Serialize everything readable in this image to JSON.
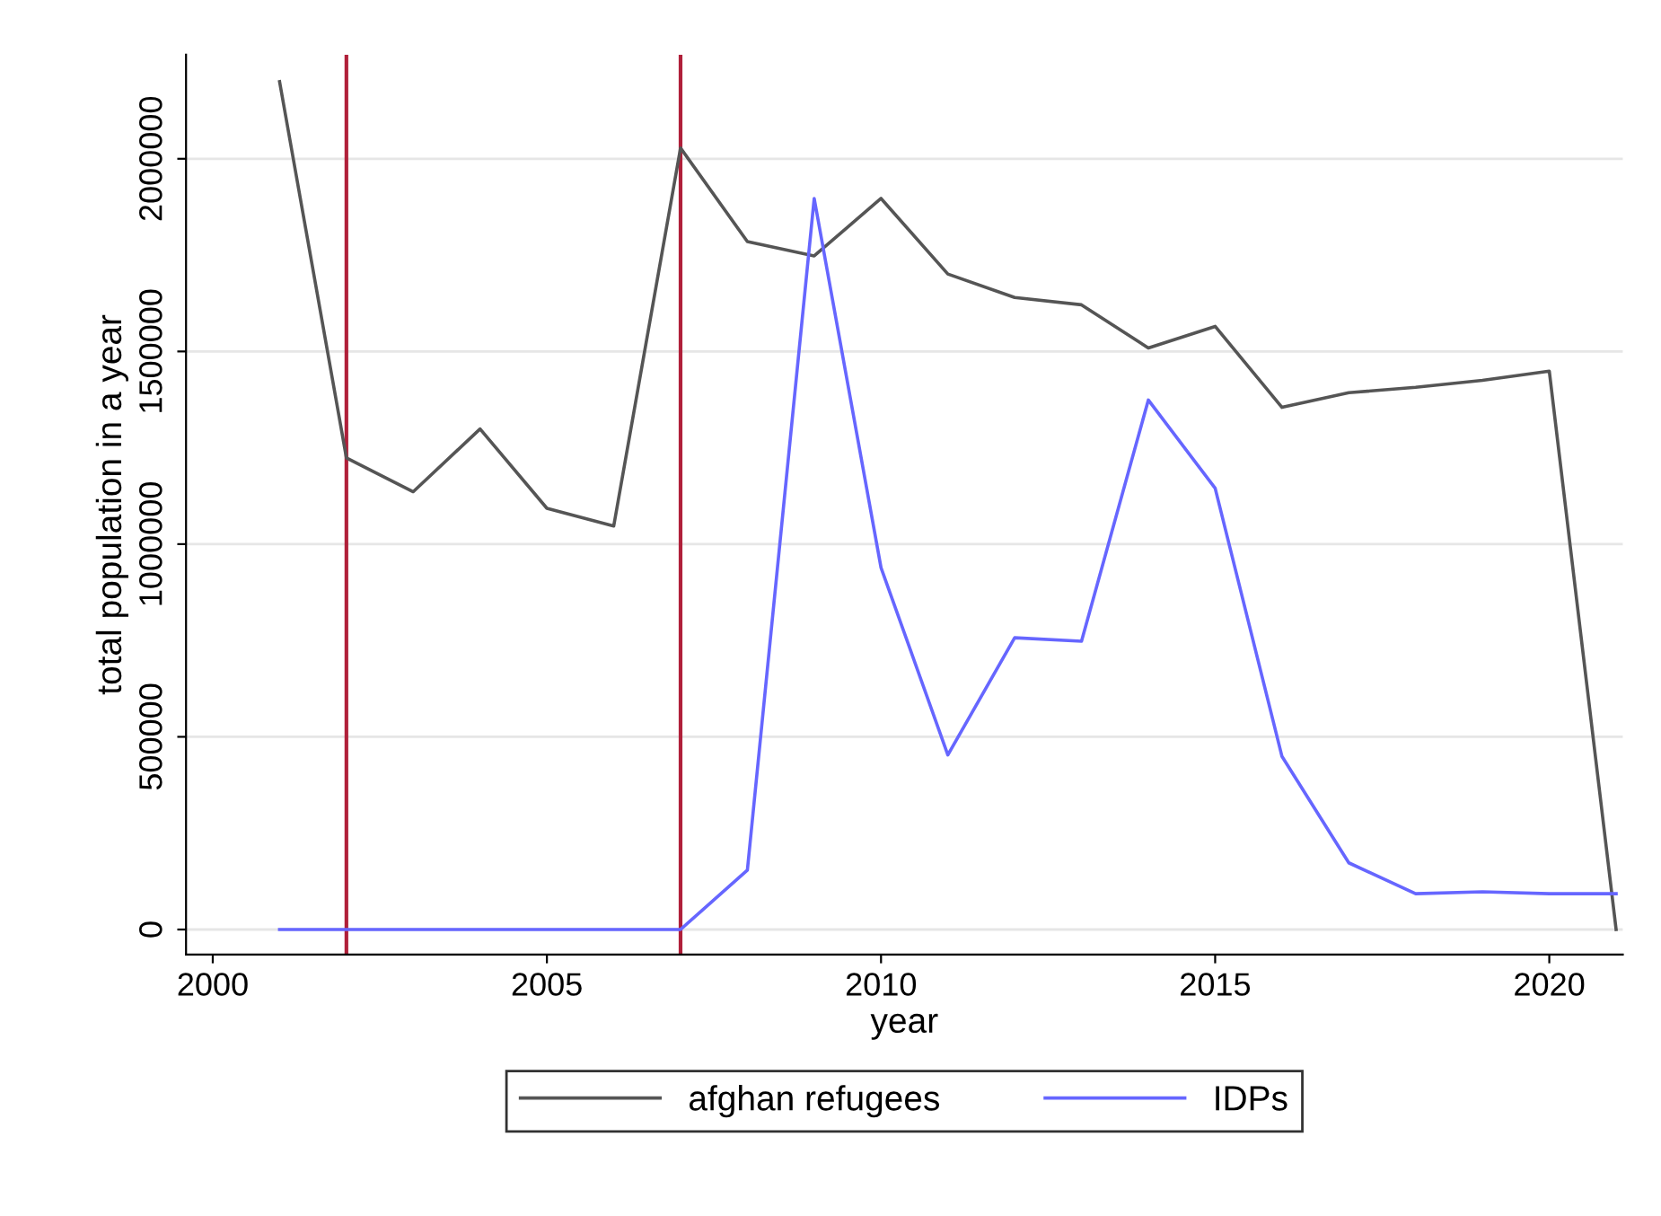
{
  "chart_data": {
    "type": "line",
    "xlabel": "year",
    "ylabel": "total population in a year",
    "x": [
      2001,
      2002,
      2003,
      2004,
      2005,
      2006,
      2007,
      2008,
      2009,
      2010,
      2011,
      2012,
      2013,
      2014,
      2015,
      2016,
      2017,
      2018,
      2019,
      2020,
      2021
    ],
    "series": [
      {
        "name": "afghan refugees",
        "color": "#555555",
        "values": [
          2200000,
          1224000,
          1136000,
          1299000,
          1093000,
          1047000,
          2028000,
          1785000,
          1748000,
          1897000,
          1701000,
          1640000,
          1621000,
          1509000,
          1565000,
          1355000,
          1393000,
          1407000,
          1425000,
          1449000,
          0
        ]
      },
      {
        "name": "IDPs",
        "color": "#6666ff",
        "values": [
          0,
          0,
          0,
          0,
          0,
          0,
          0,
          154000,
          1897000,
          939000,
          453000,
          757000,
          748000,
          1374000,
          1145000,
          449000,
          173000,
          93000,
          98000,
          93000,
          93000
        ]
      }
    ],
    "xlim": [
      1999.6,
      2021.1
    ],
    "ylim": [
      -65000,
      2270000
    ],
    "xticks": [
      2000,
      2005,
      2010,
      2015,
      2020
    ],
    "yticks": [
      0,
      500000,
      1000000,
      1500000,
      2000000
    ],
    "ref_lines": [
      {
        "axis": "x",
        "value": 2002,
        "color": "#b0203a"
      },
      {
        "axis": "x",
        "value": 2007,
        "color": "#b0203a"
      }
    ],
    "grid": "y",
    "legend": "bottom",
    "line_style": "solid",
    "marker": "none"
  }
}
